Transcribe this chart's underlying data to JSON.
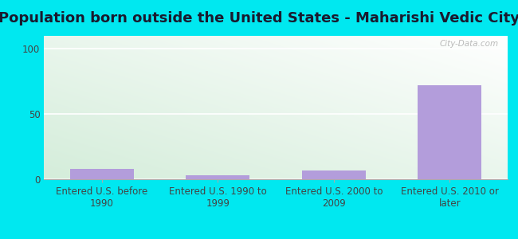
{
  "title": "Population born outside the United States - Maharishi Vedic City",
  "categories": [
    "Entered U.S. before\n1990",
    "Entered U.S. 1990 to\n1999",
    "Entered U.S. 2000 to\n2009",
    "Entered U.S. 2010 or\nlater"
  ],
  "values": [
    8,
    3,
    7,
    72
  ],
  "bar_color": "#b39ddb",
  "bar_color_outline": "#9575cd",
  "ylim": [
    0,
    110
  ],
  "yticks": [
    0,
    50,
    100
  ],
  "outer_bg": "#00e8f0",
  "title_fontsize": 13,
  "tick_fontsize": 8.5,
  "watermark": "City-Data.com",
  "grid_color": "#dddddd",
  "title_color": "#1a1a2e"
}
